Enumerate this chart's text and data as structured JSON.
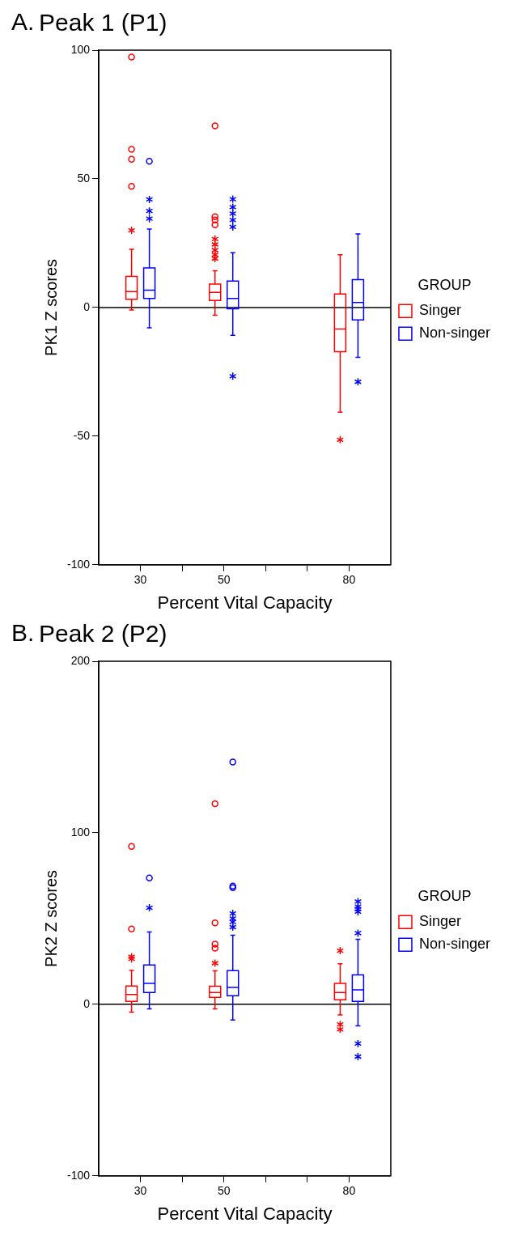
{
  "chart_data": [
    {
      "type": "box",
      "title": "Peak 1 (P1)",
      "xlabel": "Percent Vital Capacity",
      "ylabel": "PK1 Z scores",
      "legend_title": "GROUP",
      "annotations": [
        "A."
      ],
      "x": [
        30,
        50,
        80
      ],
      "series": [
        {
          "name": "Singer",
          "color": "#ff0000",
          "boxes": [
            {
              "low": -1,
              "q1": 3.2,
              "median": 6.2,
              "q3": 12.1,
              "high": 22.6,
              "outliers": [
                30,
                47.1,
                57.6,
                61.5,
                97.3
              ]
            },
            {
              "low": -3,
              "q1": 2.7,
              "median": 5.9,
              "q3": 9.1,
              "high": 14.3,
              "outliers": [
                19,
                20.5,
                22.3,
                24.5,
                26.6,
                32.1,
                34,
                35.3,
                70.6
              ]
            },
            {
              "low": -40.7,
              "q1": -17.2,
              "median": -8.4,
              "q3": 5.2,
              "high": 20.5,
              "outliers": [
                -51.4
              ]
            }
          ]
        },
        {
          "name": "Non-singer",
          "color": "#0000ff",
          "boxes": [
            {
              "low": -7.9,
              "q1": 3.5,
              "median": 6.7,
              "q3": 15.4,
              "high": 30.5,
              "outliers": [
                34.5,
                37.5,
                42,
                56.8
              ]
            },
            {
              "low": -10.8,
              "q1": -0.5,
              "median": 3.5,
              "q3": 10.3,
              "high": 21.3,
              "outliers": [
                -26.7,
                31.3,
                34,
                36.5,
                39,
                42.1
              ]
            },
            {
              "low": -19.4,
              "q1": -4.8,
              "median": 1.9,
              "q3": 10.8,
              "high": 28.6,
              "outliers": [
                -28.9
              ]
            }
          ]
        }
      ],
      "xlim": [
        20,
        90
      ],
      "xticks": [
        30,
        {
          "value": 40,
          "label": null
        },
        50,
        {
          "value": 60,
          "label": null
        },
        {
          "value": 70,
          "label": null
        },
        80
      ],
      "ylim": [
        -100,
        100
      ],
      "yticks": [
        -100,
        -50,
        0,
        50,
        100
      ],
      "ref_lines": [
        {
          "axis": "y",
          "value": 0,
          "color": "#000000"
        }
      ],
      "grid": false,
      "legend": "right"
    },
    {
      "type": "box",
      "title": "Peak 2 (P2)",
      "xlabel": "Percent Vital Capacity",
      "ylabel": "PK2 Z scores",
      "legend_title": "GROUP",
      "annotations": [
        "B."
      ],
      "x": [
        30,
        50,
        80
      ],
      "series": [
        {
          "name": "Singer",
          "color": "#ff0000",
          "boxes": [
            {
              "low": -4.5,
              "q1": 1.7,
              "median": 5.7,
              "q3": 10.7,
              "high": 19.8,
              "outliers": [
                26.5,
                27.7,
                43.9,
                92.1
              ]
            },
            {
              "low": -2.6,
              "q1": 4.1,
              "median": 6.9,
              "q3": 10.5,
              "high": 19.5,
              "outliers": [
                24,
                32.7,
                35.1,
                47.5,
                116.9
              ]
            },
            {
              "low": -6.2,
              "q1": 2.6,
              "median": 6.9,
              "q3": 12.2,
              "high": 23.6,
              "outliers": [
                -14.6,
                -11.7,
                31.3
              ]
            }
          ]
        },
        {
          "name": "Non-singer",
          "color": "#0000ff",
          "boxes": [
            {
              "low": -2.6,
              "q1": 6.9,
              "median": 12.2,
              "q3": 22.9,
              "high": 42.2,
              "outliers": [
                56.3,
                73.7
              ]
            },
            {
              "low": -9.1,
              "q1": 5,
              "median": 9.8,
              "q3": 19.6,
              "high": 40.3,
              "outliers": [
                45,
                48,
                50,
                53,
                68,
                69,
                141.3
              ]
            },
            {
              "low": -12.6,
              "q1": 1.7,
              "median": 8.4,
              "q3": 17.2,
              "high": 37.9,
              "outliers": [
                -30.5,
                -22.9,
                41.5,
                54,
                55.6,
                57,
                59.9
              ]
            }
          ]
        }
      ],
      "xlim": [
        20,
        90
      ],
      "xticks": [
        30,
        {
          "value": 40,
          "label": null
        },
        50,
        {
          "value": 60,
          "label": null
        },
        {
          "value": 70,
          "label": null
        },
        80
      ],
      "ylim": [
        -100,
        200
      ],
      "yticks": [
        -100,
        0,
        100,
        200
      ],
      "ref_lines": [
        {
          "axis": "y",
          "value": 0,
          "color": "#000000"
        }
      ],
      "grid": false,
      "legend": "right"
    }
  ]
}
